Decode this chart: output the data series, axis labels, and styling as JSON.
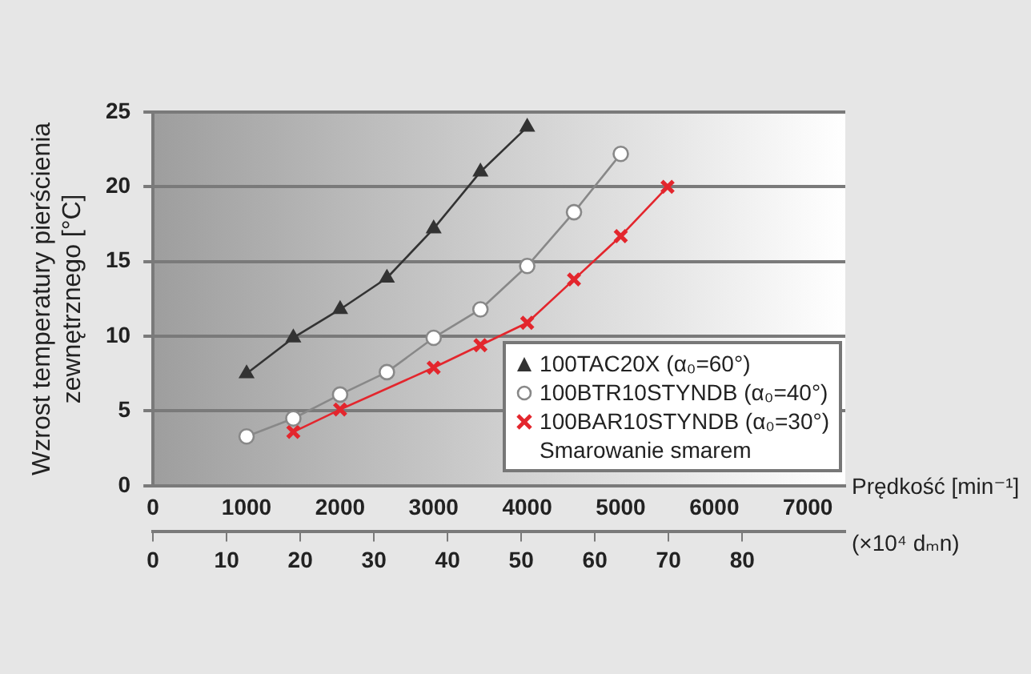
{
  "chart_data": {
    "type": "line",
    "xlabel": "Prędkość [min⁻¹]",
    "ylabel": "Wzrost temperatury pierścienia zewnętrznego [°C]",
    "x2label": "(×10⁴ dₘn)",
    "xlim": [
      0,
      7400
    ],
    "xticks": [
      0,
      1000,
      2000,
      3000,
      4000,
      5000,
      6000,
      7000
    ],
    "x2lim": [
      0,
      94
    ],
    "x2ticks": [
      0,
      10,
      20,
      30,
      40,
      50,
      60,
      70,
      80
    ],
    "ylim": [
      0,
      25
    ],
    "yticks": [
      0,
      5,
      10,
      15,
      20,
      25
    ],
    "grid": "y",
    "legend": "bottom right",
    "annotations": [
      "Smarowanie smarem"
    ],
    "series": [
      {
        "name": "100TAC20X (α₀=60°)",
        "color": "#333333",
        "marker": "triangle",
        "x": [
          1000,
          1500,
          2000,
          2500,
          3000,
          3500,
          4000
        ],
        "values": [
          7.5,
          9.9,
          11.8,
          13.9,
          17.2,
          21.0,
          24.0
        ]
      },
      {
        "name": "100BTR10STYNDB (α₀=40°)",
        "color": "#888888",
        "marker": "circle",
        "x": [
          1000,
          1500,
          2000,
          2500,
          3000,
          3500,
          4000,
          4500,
          5000
        ],
        "values": [
          3.3,
          4.5,
          6.1,
          7.6,
          9.9,
          11.8,
          14.7,
          18.3,
          22.2
        ]
      },
      {
        "name": "100BAR10STYNDB (α₀=30°)",
        "color": "#e3262d",
        "marker": "cross",
        "x": [
          1500,
          2000,
          3000,
          3500,
          4000,
          4500,
          5000,
          5500
        ],
        "values": [
          3.6,
          5.1,
          7.9,
          9.4,
          10.9,
          13.8,
          16.7,
          20.0
        ]
      }
    ]
  }
}
